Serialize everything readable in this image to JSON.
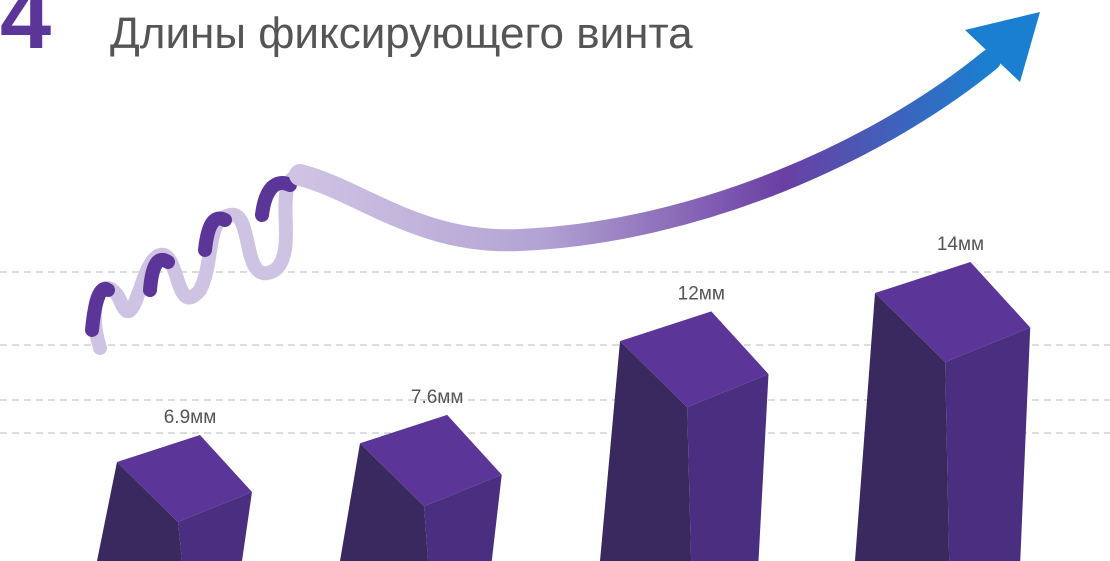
{
  "chart_data": {
    "type": "bar",
    "number": "4",
    "title": "Длины фиксирующего винта",
    "values": [
      6.9,
      7.6,
      12,
      14
    ],
    "value_labels": [
      "6.9мм",
      "7.6мм",
      "12мм",
      "14мм"
    ],
    "colors": {
      "top": "#5b3597",
      "left": "#39295e",
      "right": "#4a2f80"
    }
  }
}
